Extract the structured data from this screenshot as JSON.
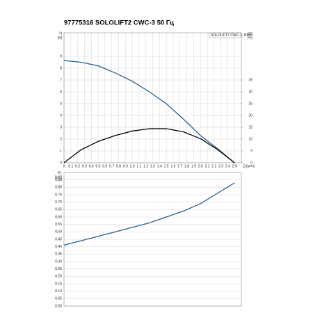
{
  "title": "97775316 SOLOLIFT2 CWC-3 50 Гц",
  "chart_data": [
    {
      "type": "line",
      "legend_text": "SOLOLIFT2 CWC-3, 50Hz",
      "y_label": "H",
      "y_unit": "[м]",
      "y2_label": "eta",
      "y2_unit": "[%]",
      "x_label": "Q [м³/ч]",
      "x": [
        0,
        0.25,
        0.5,
        0.75,
        1.0,
        1.25,
        1.5,
        1.75,
        2.0,
        2.25,
        2.5
      ],
      "series": [
        {
          "color": "#2a5d8f",
          "values": [
            8.65,
            8.5,
            8.2,
            7.6,
            6.9,
            6.0,
            5.0,
            3.7,
            2.3,
            1.2,
            0
          ]
        },
        {
          "color": "#000000",
          "axis": "y2",
          "values": [
            0,
            5.5,
            9.0,
            11.5,
            13.4,
            14.4,
            14.4,
            13.1,
            10.2,
            5.6,
            0
          ]
        }
      ],
      "xlim": [
        0,
        2.6
      ],
      "xticks": [
        0,
        0.1,
        0.2,
        0.3,
        0.4,
        0.5,
        0.6,
        0.7,
        0.8,
        0.9,
        {
          "value": 1,
          "label": "1.0"
        },
        1.1,
        1.2,
        1.3,
        1.4,
        1.5,
        1.6,
        1.7,
        1.8,
        1.9,
        {
          "value": 2,
          "label": "2.0"
        },
        2.1,
        2.2,
        2.3,
        2.4,
        2.5
      ],
      "ylim": [
        0,
        11
      ],
      "yticks": [
        0,
        1,
        2,
        3,
        4,
        5,
        6,
        7,
        8,
        9
      ],
      "y2lim": [
        0,
        55
      ],
      "y2ticks": [
        0,
        5,
        10,
        15,
        20,
        25,
        30,
        35
      ],
      "grid": true
    },
    {
      "type": "line",
      "y_label": "P1",
      "y_unit": "[kW]",
      "x": [
        0,
        0.25,
        0.5,
        0.75,
        1.0,
        1.25,
        1.5,
        1.75,
        2.0,
        2.25,
        2.5
      ],
      "series": [
        {
          "color": "#2a5d8f",
          "values": [
            0.41,
            0.44,
            0.47,
            0.5,
            0.53,
            0.56,
            0.6,
            0.64,
            0.69,
            0.76,
            0.83
          ]
        }
      ],
      "xlim": [
        0,
        2.6
      ],
      "ylim": [
        0,
        0.9
      ],
      "yticks": [
        {
          "value": 0,
          "label": "0.00"
        },
        0.05,
        {
          "value": 0.1,
          "label": "0.10"
        },
        0.15,
        {
          "value": 0.2,
          "label": "0.20"
        },
        0.25,
        {
          "value": 0.3,
          "label": "0.30"
        },
        0.35,
        {
          "value": 0.4,
          "label": "0.40"
        },
        0.45,
        {
          "value": 0.5,
          "label": "0.50"
        },
        0.55,
        {
          "value": 0.6,
          "label": "0.60"
        },
        0.65,
        {
          "value": 0.7,
          "label": "0.70"
        },
        0.75,
        {
          "value": 0.8,
          "label": "0.80"
        },
        0.85
      ],
      "grid": true
    }
  ]
}
